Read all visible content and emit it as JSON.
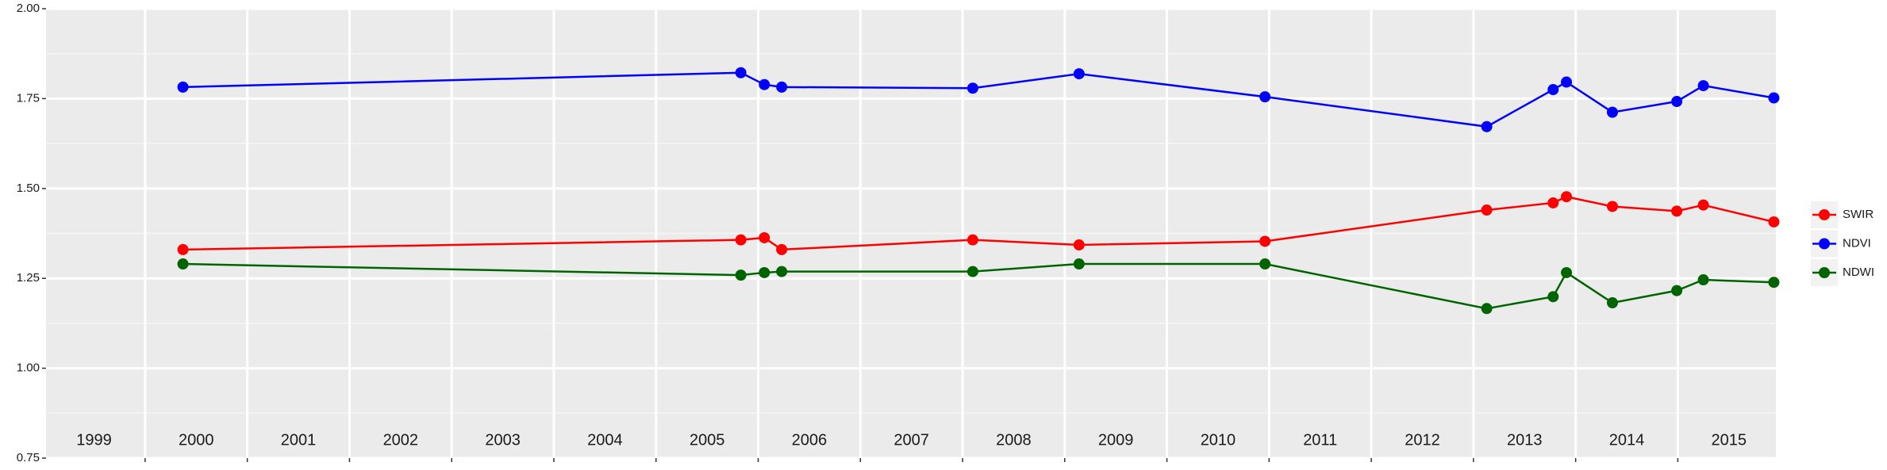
{
  "chart_data": {
    "type": "line",
    "x": [
      2000.37,
      2005.83,
      2006.06,
      2006.23,
      2008.1,
      2009.14,
      2010.96,
      2013.13,
      2013.78,
      2013.91,
      2014.36,
      2014.99,
      2015.25,
      2015.94
    ],
    "series": [
      {
        "name": "SWIR",
        "color": "#ff0000",
        "values": [
          1.33,
          1.357,
          1.363,
          1.33,
          1.357,
          1.343,
          1.353,
          1.44,
          1.46,
          1.477,
          1.45,
          1.437,
          1.454,
          1.407
        ]
      },
      {
        "name": "NDVI",
        "color": "#0000ff",
        "values": [
          1.782,
          1.822,
          1.789,
          1.782,
          1.779,
          1.819,
          1.755,
          1.672,
          1.775,
          1.796,
          1.712,
          1.742,
          1.786,
          1.752
        ]
      },
      {
        "name": "NDWI",
        "color": "#006400",
        "values": [
          1.29,
          1.259,
          1.266,
          1.269,
          1.269,
          1.29,
          1.29,
          1.166,
          1.199,
          1.266,
          1.182,
          1.216,
          1.246,
          1.239
        ]
      }
    ],
    "xlim": [
      1999.03,
      2015.96
    ],
    "xgrid": [
      2000,
      2001,
      2002,
      2003,
      2004,
      2005,
      2006,
      2007,
      2008,
      2009,
      2010,
      2011,
      2012,
      2013,
      2014,
      2015
    ],
    "year_labels": [
      {
        "value": 1999.5,
        "label": "1999"
      },
      {
        "value": 2000.5,
        "label": "2000"
      },
      {
        "value": 2001.5,
        "label": "2001"
      },
      {
        "value": 2002.5,
        "label": "2002"
      },
      {
        "value": 2003.5,
        "label": "2003"
      },
      {
        "value": 2004.5,
        "label": "2004"
      },
      {
        "value": 2005.5,
        "label": "2005"
      },
      {
        "value": 2006.5,
        "label": "2006"
      },
      {
        "value": 2007.5,
        "label": "2007"
      },
      {
        "value": 2008.5,
        "label": "2008"
      },
      {
        "value": 2009.5,
        "label": "2009"
      },
      {
        "value": 2010.5,
        "label": "2010"
      },
      {
        "value": 2011.5,
        "label": "2011"
      },
      {
        "value": 2012.5,
        "label": "2012"
      },
      {
        "value": 2013.5,
        "label": "2013"
      },
      {
        "value": 2014.5,
        "label": "2014"
      },
      {
        "value": 2015.5,
        "label": "2015"
      }
    ],
    "ylim": [
      0.75,
      2.0
    ],
    "yticks": [
      {
        "value": 0.75,
        "label": "0.75"
      },
      {
        "value": 1.0,
        "label": "1.00"
      },
      {
        "value": 1.25,
        "label": "1.25"
      },
      {
        "value": 1.5,
        "label": "1.50"
      },
      {
        "value": 1.75,
        "label": "1.75"
      },
      {
        "value": 2.0,
        "label": "2.00"
      }
    ],
    "grid": true,
    "legend": "right"
  }
}
